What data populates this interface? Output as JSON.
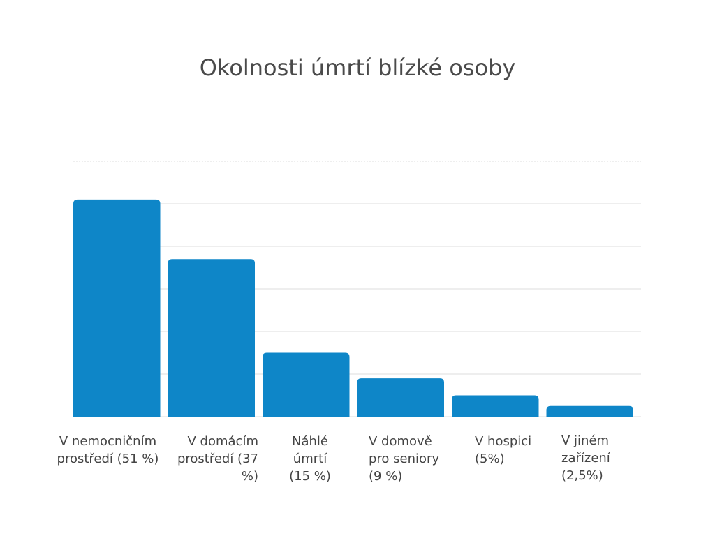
{
  "chart_data": {
    "type": "bar",
    "title": "Okolnosti úmrtí blízké osoby",
    "categories": [
      "V nemocničním prostředí (51 %)",
      "V domácím prostředí (37 %)",
      "Náhlé úmrtí (15 %)",
      "V domově pro seniory (9 %)",
      "V hospici (5%)",
      "V jiném zařízení (2,5%)"
    ],
    "values": [
      51,
      37,
      15,
      9,
      5,
      2.5
    ],
    "xlabel": "",
    "ylabel": "",
    "ylim": [
      0,
      60
    ],
    "grid": true,
    "legend": "none",
    "bar_color": "#0e86c8",
    "grid_color": "#dddddd"
  }
}
